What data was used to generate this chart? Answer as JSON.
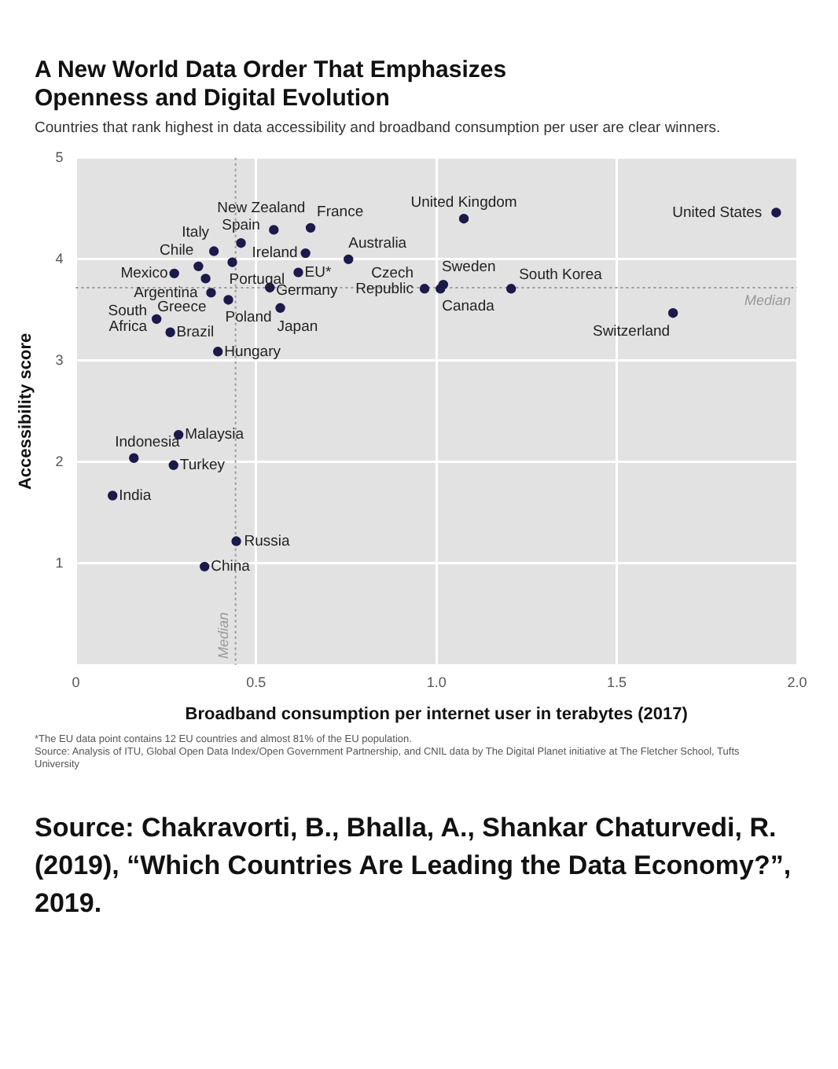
{
  "chart_data": {
    "type": "scatter",
    "title": "A New World Data Order That Emphasizes Openness and Digital Evolution",
    "subtitle": "Countries that rank highest in data accessibility and broadband consumption per user are clear winners.",
    "xlabel": "Broadband consumption per internet user in terabytes (2017)",
    "ylabel": "Accessibility score",
    "x": [
      1.942,
      1.076,
      1.656,
      1.207,
      1.019,
      1.011,
      0.967,
      0.756,
      0.651,
      0.549,
      0.458,
      0.383,
      0.637,
      0.434,
      0.34,
      0.273,
      0.617,
      0.36,
      0.538,
      0.375,
      0.423,
      0.567,
      0.224,
      0.262,
      0.394,
      0.285,
      0.161,
      0.271,
      0.102,
      0.445,
      0.357
    ],
    "series": [
      {
        "color": "#1c1a4a",
        "values": [
          4.46,
          4.4,
          3.47,
          3.71,
          3.75,
          3.71,
          3.71,
          4.0,
          4.31,
          4.29,
          4.16,
          4.08,
          4.06,
          3.97,
          3.93,
          3.86,
          3.87,
          3.81,
          3.72,
          3.67,
          3.6,
          3.52,
          3.41,
          3.28,
          3.09,
          2.27,
          2.04,
          1.97,
          1.67,
          1.22,
          0.97
        ]
      }
    ],
    "annotations": [
      {
        "text": "United States",
        "x": 1.942,
        "y": 4.46
      },
      {
        "text": "United Kingdom",
        "x": 1.076,
        "y": 4.4
      },
      {
        "text": "Switzerland",
        "x": 1.656,
        "y": 3.47
      },
      {
        "text": "South Korea",
        "x": 1.207,
        "y": 3.71
      },
      {
        "text": "Sweden",
        "x": 1.019,
        "y": 3.75
      },
      {
        "text": "Canada",
        "x": 1.011,
        "y": 3.71
      },
      {
        "text": "Czech Republic",
        "x": 0.967,
        "y": 3.71
      },
      {
        "text": "Australia",
        "x": 0.756,
        "y": 4.0
      },
      {
        "text": "France",
        "x": 0.651,
        "y": 4.31
      },
      {
        "text": "New Zealand",
        "x": 0.549,
        "y": 4.29
      },
      {
        "text": "Spain",
        "x": 0.458,
        "y": 4.16
      },
      {
        "text": "Italy",
        "x": 0.383,
        "y": 4.08
      },
      {
        "text": "Ireland",
        "x": 0.637,
        "y": 4.06
      },
      {
        "text": "Portugal",
        "x": 0.434,
        "y": 3.97
      },
      {
        "text": "Chile",
        "x": 0.34,
        "y": 3.93
      },
      {
        "text": "Mexico",
        "x": 0.273,
        "y": 3.86
      },
      {
        "text": "EU*",
        "x": 0.617,
        "y": 3.87
      },
      {
        "text": "Argentina",
        "x": 0.36,
        "y": 3.81
      },
      {
        "text": "Germany",
        "x": 0.538,
        "y": 3.72
      },
      {
        "text": "Greece",
        "x": 0.375,
        "y": 3.67
      },
      {
        "text": "Poland",
        "x": 0.423,
        "y": 3.6
      },
      {
        "text": "Japan",
        "x": 0.567,
        "y": 3.52
      },
      {
        "text": "South Africa",
        "x": 0.224,
        "y": 3.41
      },
      {
        "text": "Brazil",
        "x": 0.262,
        "y": 3.28
      },
      {
        "text": "Hungary",
        "x": 0.394,
        "y": 3.09
      },
      {
        "text": "Malaysia",
        "x": 0.285,
        "y": 2.27
      },
      {
        "text": "Indonesia",
        "x": 0.161,
        "y": 2.04
      },
      {
        "text": "Turkey",
        "x": 0.271,
        "y": 1.97
      },
      {
        "text": "India",
        "x": 0.102,
        "y": 1.67
      },
      {
        "text": "Russia",
        "x": 0.445,
        "y": 1.22
      },
      {
        "text": "China",
        "x": 0.357,
        "y": 0.97
      },
      "*The EU data point contains 12 EU countries and almost 81% of the EU population.",
      "Source: Analysis of ITU, Global Open Data Index/Open Government Partnership, and CNIL data by The Digital Planet initiative at The Fletcher School, Tufts University",
      "Source: Chakravorti, B., Bhalla, A., Shankar Chaturvedi, R. (2019), “Which Countries Are Leading the Data Economy?”, 2019."
    ],
    "ref_lines": [
      {
        "axis": "x",
        "value": 0.443,
        "label": "Median",
        "color": "#9a9a9a",
        "line_style": "dotted"
      },
      {
        "axis": "y",
        "value": 3.72,
        "label": "Median",
        "color": "#9a9a9a",
        "line_style": "dotted"
      }
    ],
    "xlim": [
      0,
      2
    ],
    "xticks": [
      0,
      0.5,
      {
        "value": 1,
        "label": "1.0"
      },
      1.5,
      {
        "value": 2,
        "label": "2.0"
      }
    ],
    "ylim": [
      0,
      5
    ],
    "yticks": [
      {
        "value": 0,
        "label": null
      },
      1,
      2,
      3,
      4,
      5
    ],
    "grid": true,
    "marker": "circle",
    "legend": false
  }
}
